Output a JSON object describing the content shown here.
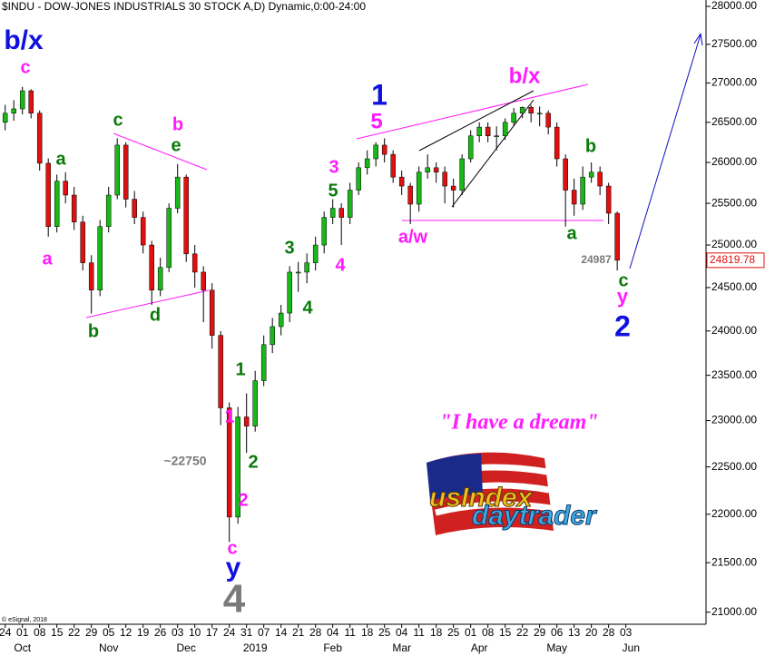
{
  "chart_data": {
    "type": "candlestick",
    "title": "$INDU - DOW-JONES INDUSTRIALS 30 STOCK A,D) Dynamic,0:00-24:00",
    "x": [
      0,
      0.5,
      1,
      1.5,
      2,
      2.5,
      3,
      3.5,
      4,
      4.5,
      5,
      5.5,
      6,
      6.5,
      7,
      7.5,
      8,
      8.5,
      9,
      9.5,
      10,
      10.5,
      11,
      11.5,
      12,
      12.5,
      13,
      13.5,
      14,
      14.5,
      15,
      15.5,
      16,
      16.5,
      17,
      17.5,
      18,
      18.5,
      19,
      19.5,
      20,
      20.5,
      21,
      21.5,
      22,
      22.5,
      23,
      23.5,
      24,
      24.5,
      25,
      25.5,
      26,
      26.5,
      27,
      27.5,
      28,
      28.5,
      29,
      29.5,
      30,
      30.5,
      31,
      31.5,
      32,
      32.5,
      33,
      33.5,
      34,
      34.5,
      35,
      35.5
    ],
    "open": [
      26500,
      26615,
      26670,
      26900,
      26615,
      25990,
      25220,
      25770,
      25600,
      25275,
      24790,
      24470,
      25220,
      25600,
      26215,
      25550,
      25330,
      25000,
      24470,
      24735,
      25440,
      25820,
      24895,
      24680,
      24470,
      23950,
      23140,
      21970,
      23040,
      22940,
      23440,
      23845,
      24050,
      24205,
      24680,
      24680,
      24790,
      25000,
      25330,
      25440,
      25330,
      25660,
      25935,
      26045,
      26215,
      26100,
      25820,
      25710,
      25490,
      25880,
      25935,
      25880,
      25710,
      25660,
      26045,
      26330,
      26440,
      26330,
      26330,
      26500,
      26615,
      26690,
      26615,
      26615,
      26440,
      26045,
      25660,
      25490,
      25820,
      25880,
      25710,
      25380
    ],
    "high": [
      26720,
      26780,
      26950,
      26920,
      26650,
      26050,
      25850,
      25880,
      25700,
      25350,
      24880,
      25300,
      25700,
      26300,
      26250,
      25650,
      25400,
      25050,
      24850,
      25500,
      25980,
      25850,
      25000,
      24750,
      24550,
      24000,
      23200,
      23150,
      23300,
      23550,
      23950,
      24150,
      24300,
      24750,
      24800,
      24900,
      25100,
      25400,
      25550,
      25500,
      25750,
      26000,
      26150,
      26250,
      26300,
      26150,
      25900,
      25750,
      25950,
      26100,
      26000,
      25950,
      25800,
      26100,
      26400,
      26500,
      26500,
      26450,
      26550,
      26680,
      26700,
      26720,
      26700,
      26650,
      26500,
      26100,
      25800,
      25950,
      26000,
      25950,
      25750,
      25400
    ],
    "low": [
      26400,
      26520,
      26600,
      26550,
      25900,
      25100,
      25150,
      25500,
      25180,
      24700,
      24200,
      24400,
      25150,
      25550,
      25450,
      25250,
      24900,
      24300,
      24400,
      24680,
      25380,
      24800,
      24500,
      24100,
      23800,
      22950,
      21712,
      21900,
      22650,
      22880,
      23380,
      23750,
      23950,
      24100,
      24450,
      24550,
      24700,
      24900,
      25250,
      25000,
      25250,
      25600,
      25850,
      25950,
      26000,
      25750,
      25600,
      25250,
      25400,
      25800,
      25750,
      25500,
      25450,
      25600,
      26000,
      26250,
      26250,
      26150,
      26280,
      26450,
      26550,
      26500,
      26450,
      26350,
      25950,
      25220,
      25350,
      25420,
      25750,
      25600,
      25250,
      24700
    ],
    "close": [
      26615,
      26670,
      26900,
      26615,
      25990,
      25220,
      25770,
      25600,
      25275,
      24790,
      24470,
      25220,
      25600,
      26215,
      25550,
      25330,
      25000,
      24470,
      24735,
      25440,
      25820,
      24895,
      24680,
      24470,
      23950,
      23140,
      21970,
      23040,
      22940,
      23440,
      23845,
      24050,
      24205,
      24680,
      24680,
      24790,
      25000,
      25330,
      25440,
      25330,
      25660,
      25935,
      26045,
      26215,
      26100,
      25820,
      25710,
      25490,
      25880,
      25935,
      25880,
      25710,
      25660,
      26045,
      26330,
      26440,
      26330,
      26330,
      26500,
      26615,
      26690,
      26615,
      26615,
      26440,
      26045,
      25660,
      25490,
      25820,
      25880,
      25710,
      25380,
      24820
    ],
    "up_color": "#18b818",
    "down_color": "#e01010",
    "log_scale": true,
    "xlim": [
      -0.3,
      40.65
    ],
    "ylim": [
      20880,
      28085
    ],
    "yticks": [
      {
        "value": 21000,
        "label": "21000.00"
      },
      {
        "value": 21500,
        "label": "21500.00"
      },
      {
        "value": 22000,
        "label": "22000.00"
      },
      {
        "value": 22500,
        "label": "22500.00"
      },
      {
        "value": 23000,
        "label": "23000.00"
      },
      {
        "value": 23500,
        "label": "23500.00"
      },
      {
        "value": 24000,
        "label": "24000.00"
      },
      {
        "value": 24500,
        "label": "24500.00"
      },
      {
        "value": 25000,
        "label": "25000.00"
      },
      {
        "value": 25500,
        "label": "25500.00"
      },
      {
        "value": 26000,
        "label": "26000.00"
      },
      {
        "value": 26500,
        "label": "26500.00"
      },
      {
        "value": 27000,
        "label": "27000.00"
      },
      {
        "value": 27500,
        "label": "27500.00"
      },
      {
        "value": 28000,
        "label": "28000.00"
      }
    ],
    "xticks": [
      {
        "value": 0,
        "label": "24"
      },
      {
        "value": 1,
        "label": "01"
      },
      {
        "value": 2,
        "label": "08"
      },
      {
        "value": 3,
        "label": "15"
      },
      {
        "value": 4,
        "label": "22"
      },
      {
        "value": 5,
        "label": "29"
      },
      {
        "value": 6,
        "label": "05"
      },
      {
        "value": 7,
        "label": "12"
      },
      {
        "value": 8,
        "label": "19"
      },
      {
        "value": 9,
        "label": "26"
      },
      {
        "value": 10,
        "label": "03"
      },
      {
        "value": 11,
        "label": "10"
      },
      {
        "value": 12,
        "label": "17"
      },
      {
        "value": 13,
        "label": "24"
      },
      {
        "value": 14,
        "label": "31"
      },
      {
        "value": 15,
        "label": "07"
      },
      {
        "value": 16,
        "label": "14"
      },
      {
        "value": 17,
        "label": "21"
      },
      {
        "value": 18,
        "label": "28"
      },
      {
        "value": 19,
        "label": "04"
      },
      {
        "value": 20,
        "label": "11"
      },
      {
        "value": 21,
        "label": "18"
      },
      {
        "value": 22,
        "label": "25"
      },
      {
        "value": 23,
        "label": "04"
      },
      {
        "value": 24,
        "label": "11"
      },
      {
        "value": 25,
        "label": "18"
      },
      {
        "value": 26,
        "label": "25"
      },
      {
        "value": 27,
        "label": "01"
      },
      {
        "value": 28,
        "label": "08"
      },
      {
        "value": 29,
        "label": "15"
      },
      {
        "value": 30,
        "label": "22"
      },
      {
        "value": 31,
        "label": "29"
      },
      {
        "value": 32,
        "label": "06"
      },
      {
        "value": 33,
        "label": "13"
      },
      {
        "value": 34,
        "label": "20"
      },
      {
        "value": 35,
        "label": "28"
      },
      {
        "value": 36,
        "label": "03"
      }
    ],
    "month_ticks": [
      {
        "value": 1,
        "label": "Oct"
      },
      {
        "value": 6,
        "label": "Nov"
      },
      {
        "value": 10.5,
        "label": "Dec"
      },
      {
        "value": 14.5,
        "label": "2019"
      },
      {
        "value": 19,
        "label": "Feb"
      },
      {
        "value": 23,
        "label": "Mar"
      },
      {
        "value": 27.5,
        "label": "Apr"
      },
      {
        "value": 32,
        "label": "May"
      },
      {
        "value": 36.3,
        "label": "Jun"
      }
    ],
    "last_price": 24819.78,
    "annotations": [
      "b/x",
      "c",
      "a",
      "a",
      "c",
      "b",
      "e",
      "b",
      "d",
      "3",
      "4",
      "5",
      "3",
      "4",
      "1",
      "1",
      "2",
      "2",
      "~22750",
      "c",
      "y",
      "4",
      "1",
      "5",
      "a/w",
      "b/x",
      "b",
      "a",
      "24987",
      "c",
      "y",
      "2",
      "\"I have a dream\""
    ],
    "logo": [
      "usIndex",
      "daytrader"
    ],
    "copyright": "© eSignal, 2018"
  }
}
